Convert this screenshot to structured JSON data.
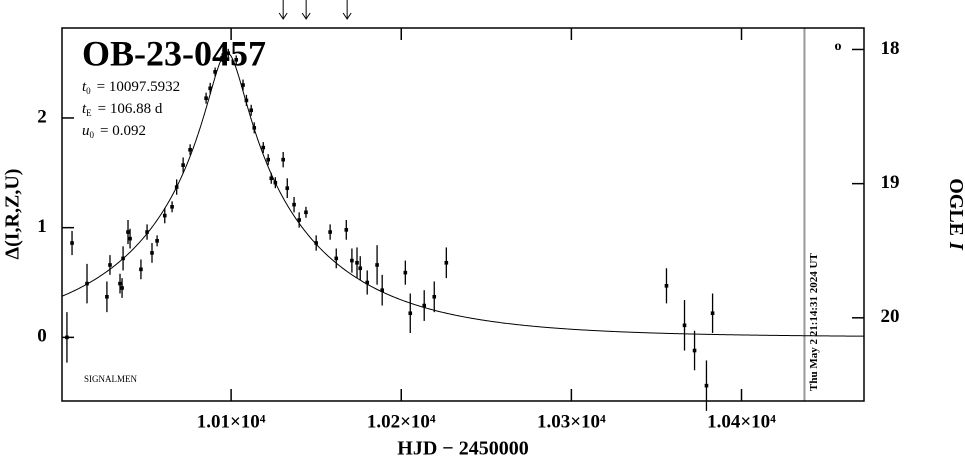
{
  "chart_data": {
    "type": "scatter",
    "title": "OB-23-0457",
    "params": [
      {
        "symbol": "t",
        "sub": "0",
        "value": 10097.5932,
        "label": "= 10097.5932"
      },
      {
        "symbol": "t",
        "sub": "E",
        "value": 106.88,
        "label": "= 106.88 d"
      },
      {
        "symbol": "u",
        "sub": "0",
        "value": 0.092,
        "label": "= 0.092"
      }
    ],
    "credit": "SIGNALMEN",
    "marker_text": "o",
    "timestamp": "Thu May  2 21:14:31 2024 UT",
    "now_line": 10437,
    "arrows": [
      10130.6,
      10144.1,
      10168.2
    ],
    "x_label": "HJD − 2450000",
    "y_label": "Δ(I,R,Z,U)",
    "y2_label": "OGLE",
    "y2_label_italic": "I",
    "xlim": [
      10000.6,
      10472
    ],
    "xticks": [
      {
        "value": 10100,
        "label": "1.01×10⁴"
      },
      {
        "value": 10200,
        "label": "1.02×10⁴"
      },
      {
        "value": 10300,
        "label": "1.03×10⁴"
      },
      {
        "value": 10400,
        "label": "1.04×10⁴"
      }
    ],
    "ylim": [
      -0.58,
      2.82
    ],
    "yticks": [
      0,
      1,
      2
    ],
    "y2lim": [
      20.62,
      17.84
    ],
    "y2ticks": [
      18,
      19,
      20
    ],
    "series": [
      {
        "color": "#000000",
        "x": [
          10003.5,
          10006.5,
          10015.3,
          10027,
          10028.8,
          10034.7,
          10035.9,
          10036.5,
          10039.4,
          10040.6,
          10047,
          10050.6,
          10053.5,
          10056.5,
          10061,
          10065.3,
          10068,
          10071.8,
          10075.9,
          10085.3,
          10087.7,
          10090.6,
          10094.7,
          10098.3,
          10103,
          10107,
          10109,
          10111.8,
          10113.6,
          10118.9,
          10121.8,
          10123.6,
          10126,
          10130.6,
          10133,
          10137,
          10140,
          10144,
          10150,
          10158.2,
          10161.8,
          10167.7,
          10171,
          10174,
          10175.9,
          10180,
          10185.8,
          10188.8,
          10202.4,
          10205.3,
          10213.5,
          10219.4,
          10226.5,
          10355.9,
          10366.5,
          10372.4,
          10379.4,
          10383
        ],
        "values": [
          0.0,
          0.86,
          0.49,
          0.37,
          0.66,
          0.49,
          0.45,
          0.72,
          0.96,
          0.9,
          0.62,
          0.96,
          0.77,
          0.88,
          1.11,
          1.19,
          1.37,
          1.57,
          1.71,
          2.18,
          2.27,
          2.42,
          2.55,
          2.59,
          2.53,
          2.3,
          2.16,
          2.07,
          1.91,
          1.73,
          1.62,
          1.45,
          1.41,
          1.62,
          1.36,
          1.21,
          1.07,
          1.14,
          0.86,
          0.96,
          0.72,
          0.98,
          0.7,
          0.68,
          0.63,
          0.5,
          0.66,
          0.43,
          0.59,
          0.22,
          0.29,
          0.37,
          0.68,
          0.47,
          0.11,
          -0.12,
          -0.44,
          0.22
        ],
        "errors": [
          0.23,
          0.11,
          0.18,
          0.14,
          0.09,
          0.09,
          0.09,
          0.11,
          0.11,
          0.09,
          0.09,
          0.07,
          0.09,
          0.05,
          0.07,
          0.05,
          0.07,
          0.07,
          0.05,
          0.05,
          0.05,
          0.04,
          0.04,
          0.04,
          0.04,
          0.05,
          0.05,
          0.05,
          0.05,
          0.05,
          0.05,
          0.05,
          0.05,
          0.07,
          0.09,
          0.07,
          0.07,
          0.05,
          0.07,
          0.07,
          0.09,
          0.09,
          0.11,
          0.14,
          0.11,
          0.11,
          0.18,
          0.14,
          0.11,
          0.18,
          0.14,
          0.14,
          0.14,
          0.16,
          0.23,
          0.18,
          0.23,
          0.18
        ]
      }
    ]
  }
}
